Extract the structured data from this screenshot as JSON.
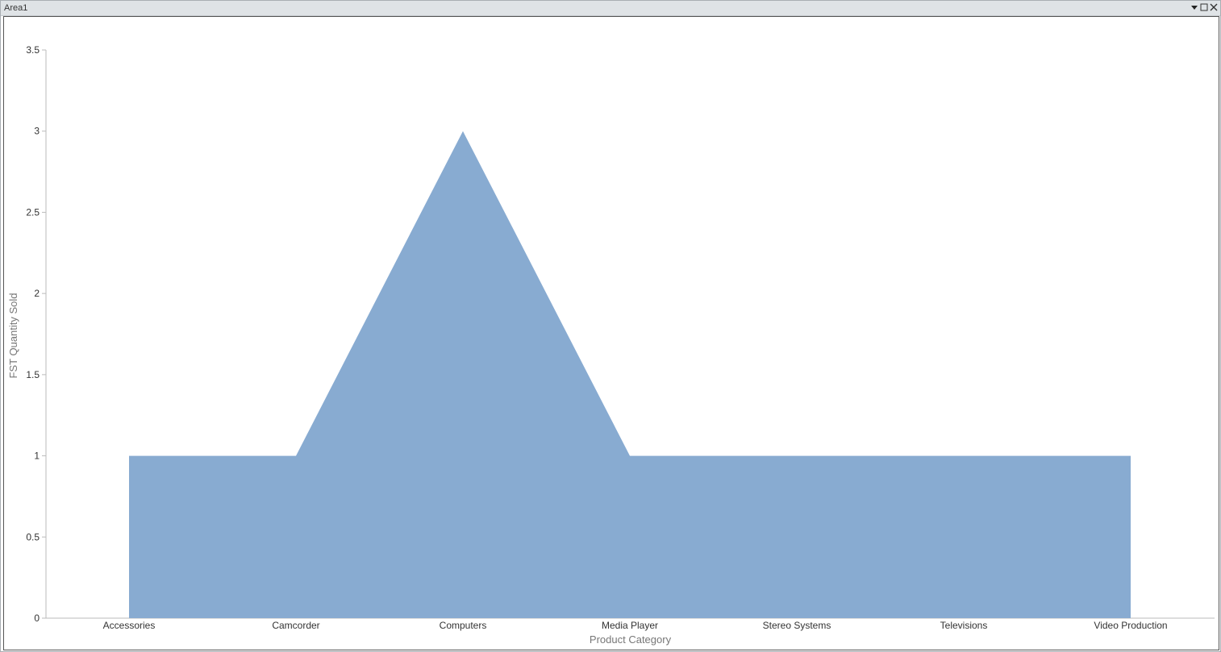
{
  "window": {
    "title": "Area1"
  },
  "icons": {
    "menu": "dropdown-arrow-icon",
    "maximize": "maximize-icon",
    "close": "close-icon"
  },
  "chart_data": {
    "type": "area",
    "title": "",
    "xlabel": "Product Category",
    "ylabel": "FST Quantity Sold",
    "categories": [
      "Accessories",
      "Camcorder",
      "Computers",
      "Media Player",
      "Stereo Systems",
      "Televisions",
      "Video Production"
    ],
    "series": [
      {
        "values": [
          1,
          1,
          3,
          1,
          1,
          1,
          1
        ],
        "color": "#88abd1"
      }
    ],
    "ylim": [
      0,
      3.5
    ],
    "yticks": [
      0,
      0.5,
      1,
      1.5,
      2,
      2.5,
      3,
      3.5
    ],
    "grid": false,
    "legend": "none"
  }
}
